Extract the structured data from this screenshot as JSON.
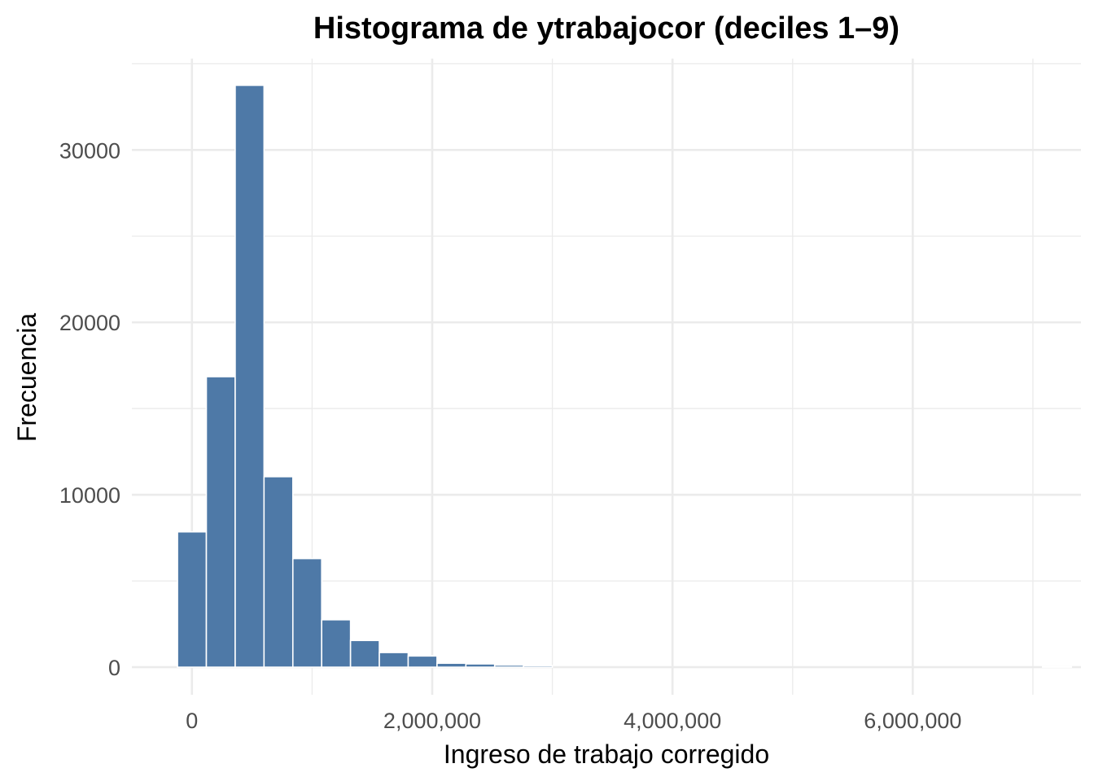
{
  "chart_data": {
    "type": "bar",
    "title": "Histograma de ytrabajocor (deciles 1–9)",
    "xlabel": "Ingreso de trabajo corregido",
    "ylabel": "Frecuencia",
    "bin_width": 240000,
    "x": [
      0,
      240000,
      480000,
      720000,
      960000,
      1200000,
      1440000,
      1680000,
      1920000,
      2160000,
      2400000,
      2640000,
      2880000,
      7200000
    ],
    "values": [
      7850,
      16850,
      33750,
      11050,
      6300,
      2750,
      1550,
      850,
      650,
      230,
      190,
      120,
      90,
      30
    ],
    "xlim": [
      -500000,
      7400000
    ],
    "ylim": [
      -1600,
      35300
    ],
    "x_ticks": [
      0,
      2000000,
      4000000,
      6000000
    ],
    "x_tick_labels": [
      "0",
      "2,000,000",
      "4,000,000",
      "6,000,000"
    ],
    "y_ticks": [
      0,
      10000,
      20000,
      30000
    ],
    "y_tick_labels": [
      "0",
      "10000",
      "20000",
      "30000"
    ],
    "bar_color": "#4e79a7",
    "bar_outline": "#ffffff",
    "grid": true,
    "legend": "none"
  }
}
